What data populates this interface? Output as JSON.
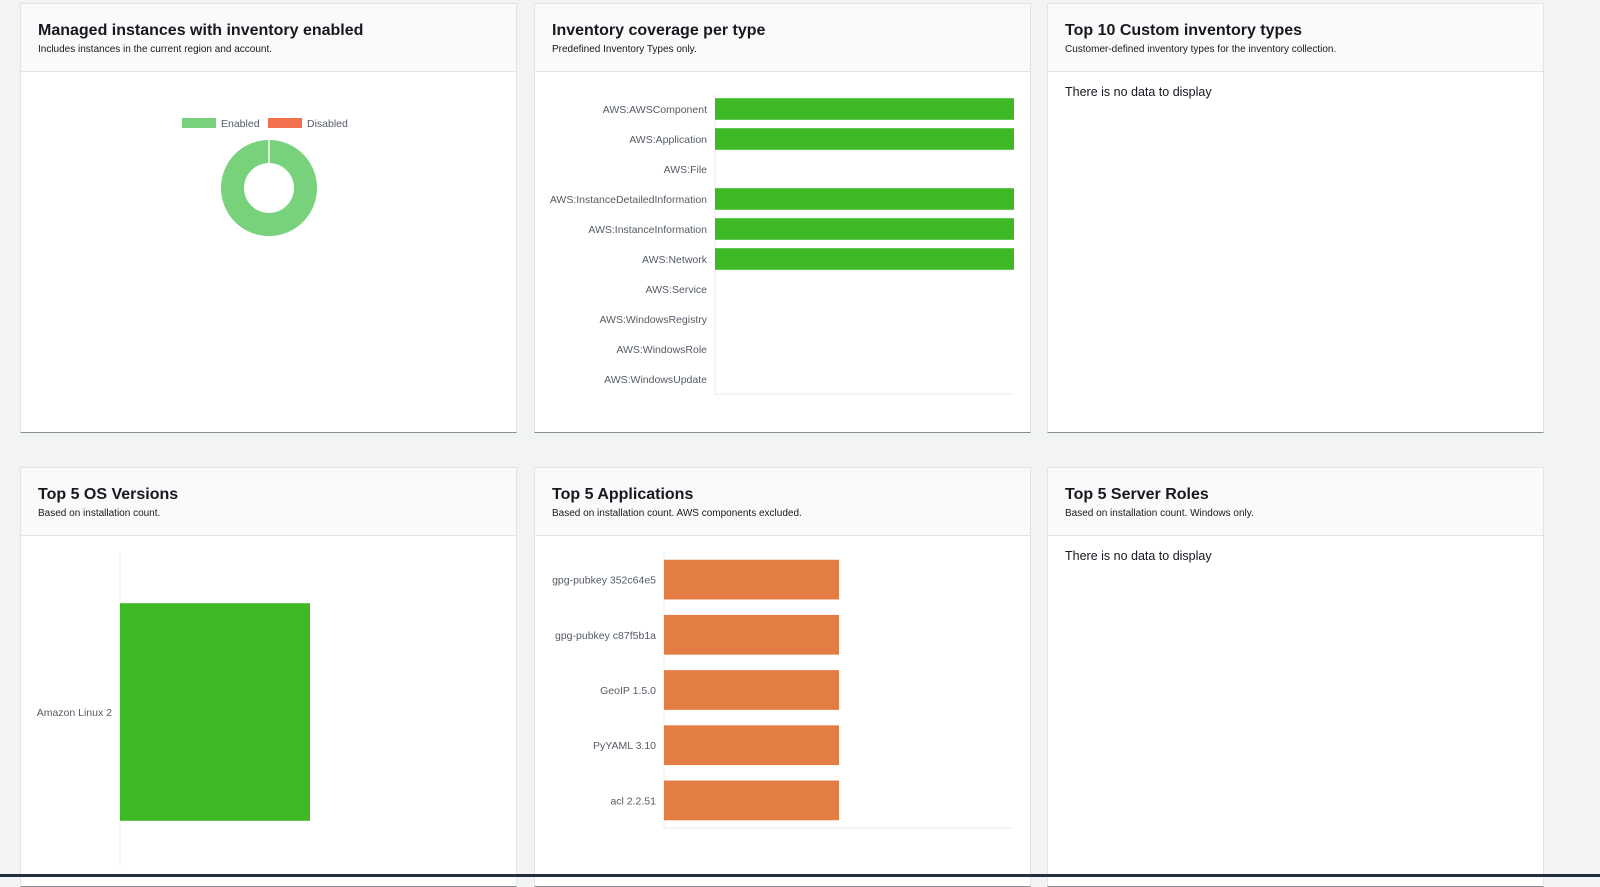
{
  "panels": {
    "managed": {
      "title": "Managed instances with inventory enabled",
      "subtitle": "Includes instances in the current region and account."
    },
    "coverage": {
      "title": "Inventory coverage per type",
      "subtitle": "Predefined Inventory Types only."
    },
    "custom": {
      "title": "Top 10 Custom inventory types",
      "subtitle": "Customer-defined inventory types for the inventory collection.",
      "empty_text": "There is no data to display"
    },
    "os": {
      "title": "Top 5 OS Versions",
      "subtitle": "Based on installation count."
    },
    "apps": {
      "title": "Top 5 Applications",
      "subtitle": "Based on installation count. AWS components excluded."
    },
    "roles": {
      "title": "Top 5 Server Roles",
      "subtitle": "Based on installation count. Windows only.",
      "empty_text": "There is no data to display"
    }
  },
  "chart_data": [
    {
      "id": "managed",
      "type": "pie",
      "donut": true,
      "legend": [
        "Enabled",
        "Disabled"
      ],
      "legend_position": "top",
      "colors": [
        "#77d27b",
        "#f2704d"
      ],
      "values": [
        100,
        0
      ]
    },
    {
      "id": "coverage",
      "type": "bar",
      "orientation": "horizontal",
      "color": "#3eb925",
      "categories": [
        "AWS:AWSComponent",
        "AWS:Application",
        "AWS:File",
        "AWS:InstanceDetailedInformation",
        "AWS:InstanceInformation",
        "AWS:Network",
        "AWS:Service",
        "AWS:WindowsRegistry",
        "AWS:WindowsRole",
        "AWS:WindowsUpdate"
      ],
      "values": [
        1,
        1,
        0,
        1,
        1,
        1,
        0,
        0,
        0,
        0
      ],
      "xlim": [
        0,
        1
      ]
    },
    {
      "id": "os",
      "type": "bar",
      "orientation": "horizontal",
      "color": "#3eb925",
      "categories": [
        "Amazon Linux 2"
      ],
      "values": [
        1
      ],
      "xlim": [
        0,
        2
      ]
    },
    {
      "id": "apps",
      "type": "bar",
      "orientation": "horizontal",
      "color": "#e47d43",
      "categories": [
        "gpg-pubkey 352c64e5",
        "gpg-pubkey c87f5b1a",
        "GeoIP 1.5.0",
        "PyYAML 3.10",
        "acl 2.2.51"
      ],
      "values": [
        1,
        1,
        1,
        1,
        1
      ],
      "xlim": [
        0,
        2
      ]
    }
  ]
}
